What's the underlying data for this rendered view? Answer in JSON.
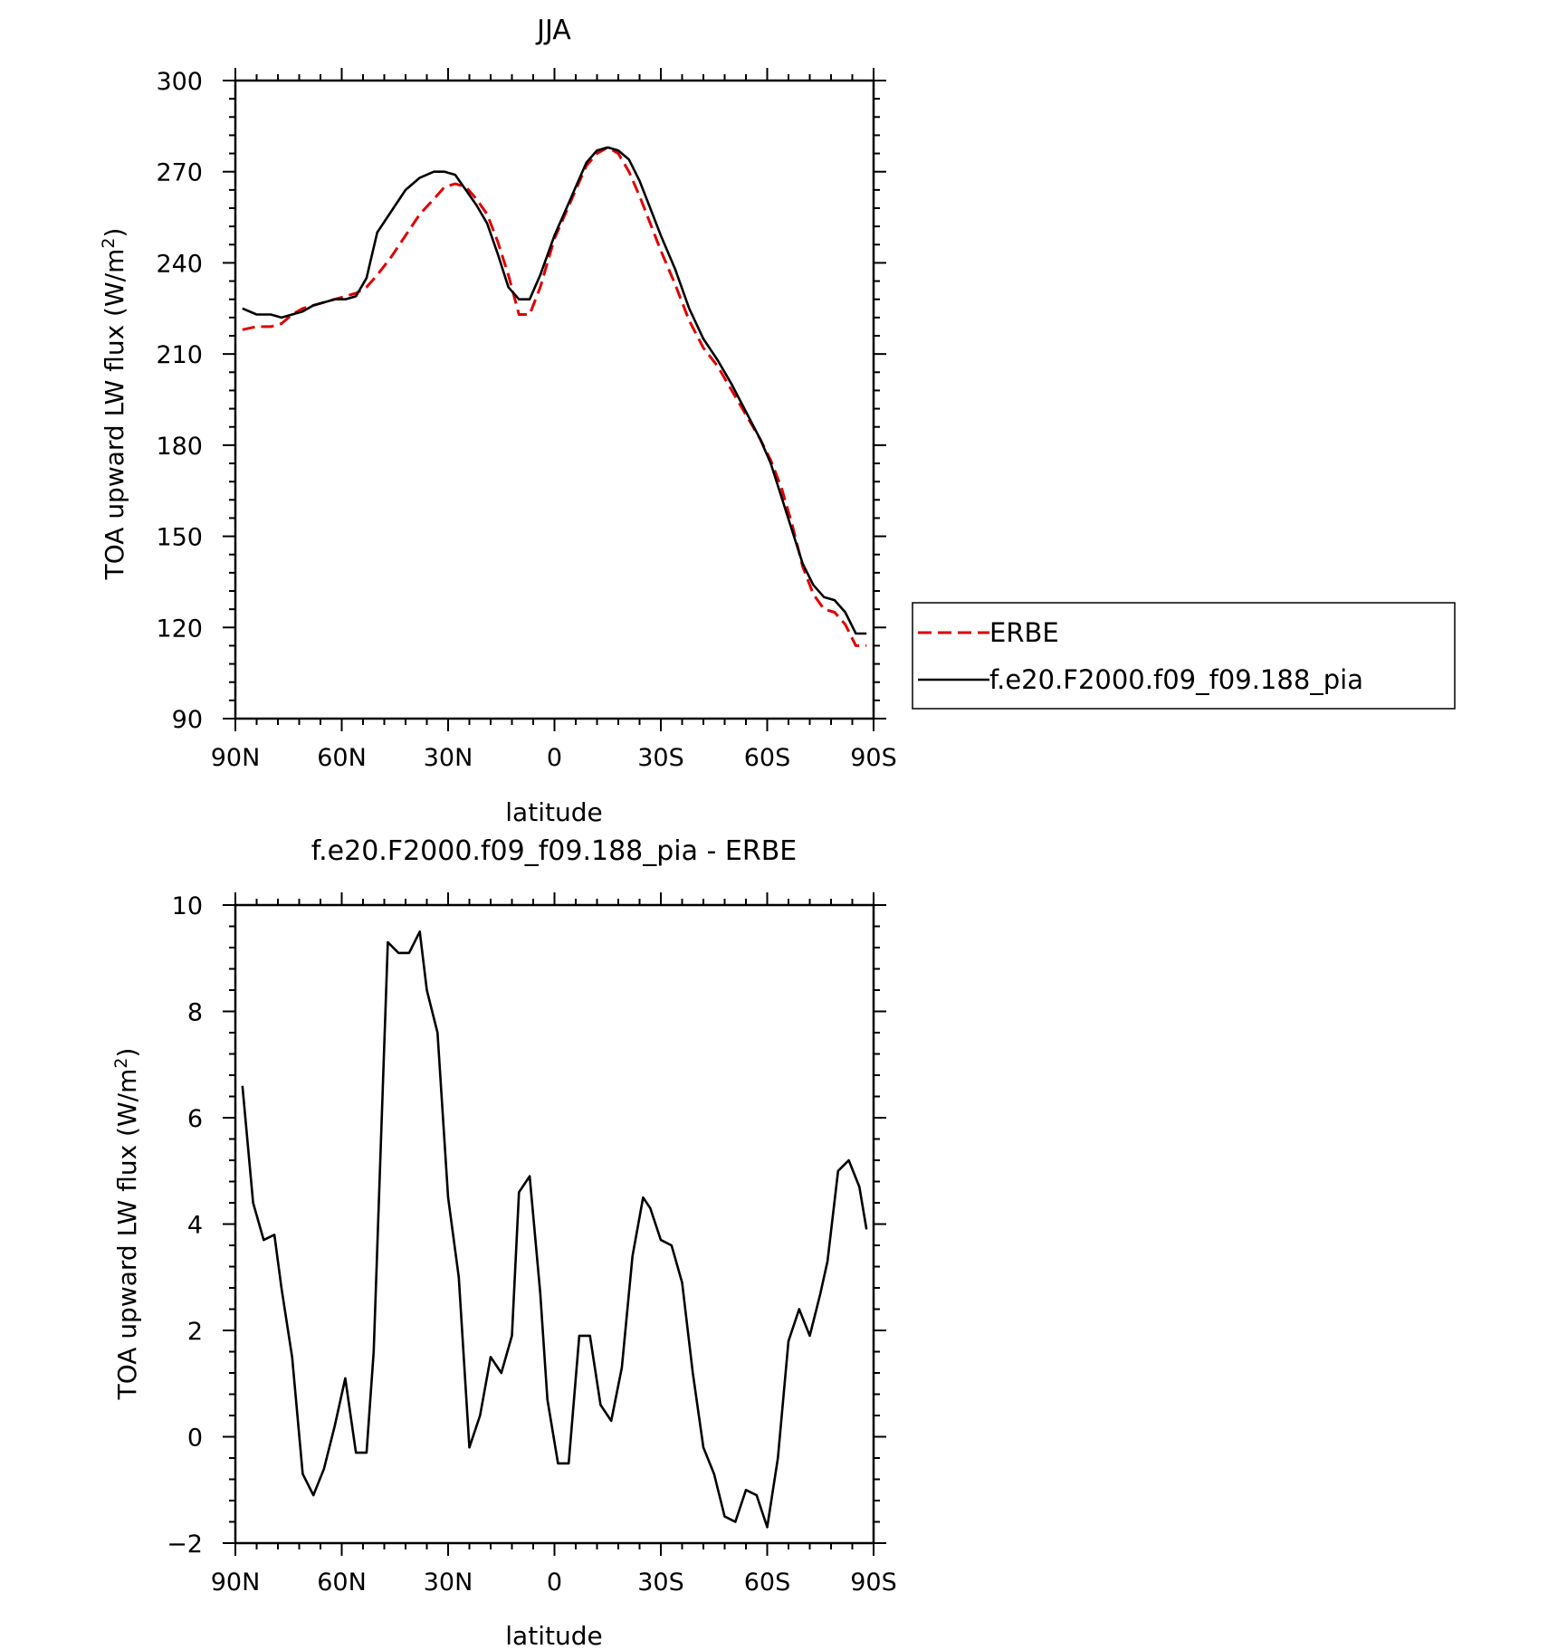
{
  "chart_data": [
    {
      "type": "line",
      "title": "JJA",
      "xlabel": "latitude",
      "ylabel": "TOA upward LW flux (W/m²)",
      "xlim": [
        90,
        -90
      ],
      "ylim": [
        90,
        300
      ],
      "xticks": [
        90,
        60,
        30,
        0,
        -30,
        -60,
        -90
      ],
      "xtick_labels": [
        "90N",
        "60N",
        "30N",
        "0",
        "30S",
        "60S",
        "90S"
      ],
      "yticks": [
        90,
        120,
        150,
        180,
        210,
        240,
        270,
        300
      ],
      "ytick_labels": [
        "90",
        "120",
        "150",
        "180",
        "210",
        "240",
        "270",
        "300"
      ],
      "legend_position": "right",
      "series": [
        {
          "name": "ERBE",
          "color": "#e00000",
          "style": "dashed",
          "x": [
            88,
            84,
            80,
            77,
            74,
            71,
            68,
            65,
            62,
            59,
            56,
            53,
            50,
            46,
            42,
            38,
            34,
            31,
            28,
            25,
            22,
            19,
            16,
            13,
            10,
            7,
            4,
            0,
            -3,
            -6,
            -9,
            -12,
            -15,
            -18,
            -21,
            -24,
            -27,
            -30,
            -34,
            -38,
            -42,
            -46,
            -50,
            -54,
            -58,
            -61,
            -64,
            -67,
            -70,
            -73,
            -76,
            -79,
            -82,
            -85,
            -88
          ],
          "values": [
            218,
            219,
            219,
            220,
            223,
            225,
            226,
            227,
            228,
            229,
            230,
            232,
            236,
            242,
            249,
            256,
            261,
            265,
            266,
            265,
            261,
            256,
            247,
            236,
            223,
            223,
            232,
            248,
            256,
            264,
            272,
            276,
            278,
            276,
            270,
            262,
            253,
            244,
            233,
            221,
            212,
            206,
            198,
            190,
            182,
            175,
            166,
            154,
            140,
            131,
            126,
            125,
            121,
            114,
            114
          ]
        },
        {
          "name": "f.e20.F2000.f09_f09.188_pia",
          "color": "#000000",
          "style": "solid",
          "x": [
            88,
            84,
            80,
            77,
            74,
            71,
            68,
            65,
            62,
            59,
            56,
            53,
            50,
            46,
            42,
            38,
            34,
            31,
            28,
            25,
            22,
            19,
            16,
            13,
            10,
            7,
            4,
            0,
            -3,
            -6,
            -9,
            -12,
            -15,
            -18,
            -21,
            -24,
            -27,
            -30,
            -34,
            -38,
            -42,
            -46,
            -50,
            -54,
            -58,
            -61,
            -64,
            -67,
            -70,
            -73,
            -76,
            -79,
            -82,
            -85,
            -88
          ],
          "values": [
            225,
            223,
            223,
            222,
            223,
            224,
            226,
            227,
            228,
            228,
            229,
            235,
            250,
            257,
            264,
            268,
            270,
            270,
            269,
            264,
            259,
            253,
            243,
            232,
            228,
            228,
            236,
            249,
            257,
            265,
            273,
            277,
            278,
            277,
            274,
            267,
            258,
            249,
            238,
            225,
            215,
            208,
            200,
            191,
            182,
            174,
            163,
            152,
            141,
            134,
            130,
            129,
            125,
            118,
            118
          ]
        }
      ]
    },
    {
      "type": "line",
      "title": "f.e20.F2000.f09_f09.188_pia - ERBE",
      "xlabel": "latitude",
      "ylabel": "TOA upward LW flux (W/m²)",
      "xlim": [
        90,
        -90
      ],
      "ylim": [
        -2,
        10
      ],
      "xticks": [
        90,
        60,
        30,
        0,
        -30,
        -60,
        -90
      ],
      "xtick_labels": [
        "90N",
        "60N",
        "30N",
        "0",
        "30S",
        "60S",
        "90S"
      ],
      "yticks": [
        -2,
        0,
        2,
        4,
        6,
        8,
        10
      ],
      "ytick_labels": [
        "−2",
        "0",
        "2",
        "4",
        "6",
        "8",
        "10"
      ],
      "series": [
        {
          "color": "#000000",
          "style": "solid",
          "x": [
            88,
            85,
            82,
            79,
            77,
            74,
            71,
            68,
            65,
            62,
            59,
            56,
            53,
            51,
            47,
            44,
            41,
            38,
            36,
            33,
            30,
            27,
            24,
            21,
            18,
            15,
            12,
            10,
            7,
            4,
            2,
            -1,
            -4,
            -7,
            -10,
            -13,
            -16,
            -19,
            -22,
            -25,
            -27,
            -30,
            -33,
            -36,
            -39,
            -42,
            -45,
            -48,
            -51,
            -54,
            -57,
            -60,
            -63,
            -66,
            -69,
            -72,
            -75,
            -77,
            -80,
            -83,
            -86,
            -88
          ],
          "values": [
            6.6,
            4.4,
            3.7,
            3.8,
            2.8,
            1.5,
            -0.7,
            -1.1,
            -0.6,
            0.2,
            1.1,
            -0.3,
            -0.3,
            1.6,
            9.3,
            9.1,
            9.1,
            9.5,
            8.4,
            7.6,
            4.5,
            3.0,
            -0.2,
            0.4,
            1.5,
            1.2,
            1.9,
            4.6,
            4.9,
            2.7,
            0.7,
            -0.5,
            -0.5,
            1.9,
            1.9,
            0.6,
            0.3,
            1.3,
            3.4,
            4.5,
            4.3,
            3.7,
            3.6,
            2.9,
            1.2,
            -0.2,
            -0.7,
            -1.5,
            -1.6,
            -1.0,
            -1.1,
            -1.7,
            -0.4,
            1.8,
            2.4,
            1.9,
            2.7,
            3.3,
            5.0,
            5.2,
            4.7,
            3.9
          ]
        }
      ]
    }
  ]
}
